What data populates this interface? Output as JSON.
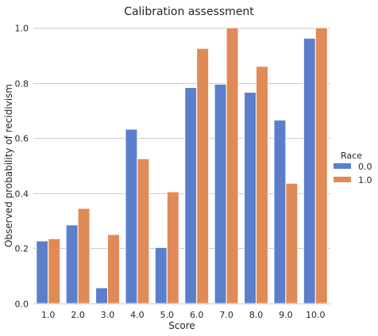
{
  "chart_data": {
    "type": "bar",
    "title": "Calibration assessment",
    "xlabel": "Score",
    "ylabel": "Observed probability of recidivism",
    "categories": [
      "1.0",
      "2.0",
      "3.0",
      "4.0",
      "5.0",
      "6.0",
      "7.0",
      "8.0",
      "9.0",
      "10.0"
    ],
    "ylim": [
      0,
      1.0
    ],
    "yticks": [
      "0.0",
      "0.2",
      "0.4",
      "0.6",
      "0.8",
      "1.0"
    ],
    "grid": "horizontal",
    "legend": {
      "title": "Race",
      "placement": "right"
    },
    "series": [
      {
        "name": "0.0",
        "color": "#5b7fcb",
        "values": [
          0.227,
          0.285,
          0.057,
          0.632,
          0.203,
          0.783,
          0.795,
          0.766,
          0.665,
          0.962
        ]
      },
      {
        "name": "1.0",
        "color": "#e08a57",
        "values": [
          0.235,
          0.345,
          0.25,
          0.525,
          0.405,
          0.925,
          1.0,
          0.86,
          0.436,
          1.0
        ]
      }
    ]
  }
}
